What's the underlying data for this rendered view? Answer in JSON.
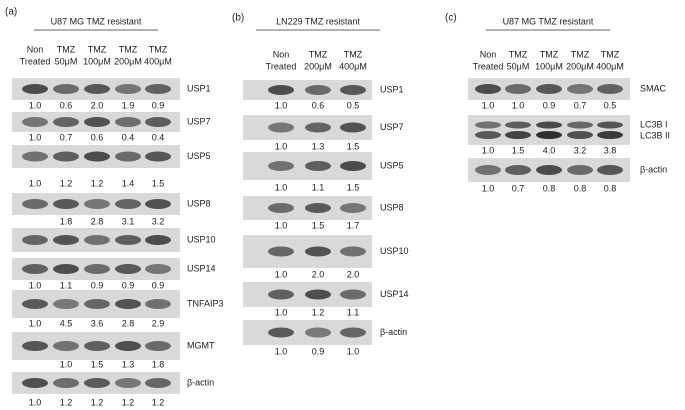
{
  "panels": [
    {
      "label": "(a)",
      "title": "U87 MG TMZ resistant",
      "lanes": [
        [
          "Non",
          "Treated"
        ],
        [
          "TMZ",
          "50μM"
        ],
        [
          "TMZ",
          "100μM"
        ],
        [
          "TMZ",
          "200μM"
        ],
        [
          "TMZ",
          "400μM"
        ]
      ],
      "blots": [
        {
          "labels": [
            "USP1"
          ],
          "values": [
            "1.0",
            "0.6",
            "2.0",
            "1.9",
            "0.9"
          ]
        },
        {
          "labels": [
            "USP7"
          ],
          "values": [
            "1.0",
            "0.7",
            "0.6",
            "0.4",
            "0.4"
          ]
        },
        {
          "labels": [
            "USP5"
          ],
          "values": [
            "1.0",
            "1.2",
            "1.2",
            "1.4",
            "1.5"
          ]
        },
        {
          "labels": [
            "USP8"
          ],
          "values": [
            null,
            "1.8",
            "2.8",
            "3.1",
            "3.2"
          ]
        },
        {
          "labels": [
            "USP10"
          ],
          "values": [
            "1.0",
            "1.4",
            "1.7",
            "2.1",
            "1.9"
          ]
        },
        {
          "labels": [
            "USP14"
          ],
          "values": [
            "1.0",
            "1.1",
            "0.9",
            "0.9",
            "0.9"
          ]
        },
        {
          "labels": [
            "TNFAIP3"
          ],
          "values": [
            "1.0",
            "4.5",
            "3.6",
            "2.8",
            "2.9"
          ]
        },
        {
          "labels": [
            "MGMT"
          ],
          "values": [
            null,
            "1.0",
            "1.5",
            "1.3",
            "1.8"
          ]
        },
        {
          "labels": [
            "β-actin"
          ],
          "values": [
            "1.0",
            "1.2",
            "1.2",
            "1.2",
            "1.2"
          ]
        }
      ]
    },
    {
      "label": "(b)",
      "title": "LN229 TMZ resistant",
      "lanes": [
        [
          "Non",
          "Treated"
        ],
        [
          "TMZ",
          "200μM"
        ],
        [
          "TMZ",
          "400μM"
        ]
      ],
      "blots": [
        {
          "labels": [
            "USP1"
          ],
          "values": [
            "1.0",
            "0.6",
            "0.5"
          ]
        },
        {
          "labels": [
            "USP7"
          ],
          "values": [
            "1.0",
            "1.3",
            "1.5"
          ]
        },
        {
          "labels": [
            "USP5"
          ],
          "values": [
            "1.0",
            "1.1",
            "1.5"
          ]
        },
        {
          "labels": [
            "USP8"
          ],
          "values": [
            "1.0",
            "1.5",
            "1.7"
          ]
        },
        {
          "labels": [
            "USP10"
          ],
          "values": [
            "1.0",
            "2.0",
            "2.0"
          ]
        },
        {
          "labels": [
            "USP14"
          ],
          "values": [
            "1.0",
            "1.2",
            "1.1"
          ]
        },
        {
          "labels": [
            "β-actin"
          ],
          "values": [
            "1.0",
            "0.9",
            "1.0"
          ]
        }
      ]
    },
    {
      "label": "(c)",
      "title": "U87 MG TMZ resistant",
      "lanes": [
        [
          "Non",
          "Treated"
        ],
        [
          "TMZ",
          "50μM"
        ],
        [
          "TMZ",
          "100μM"
        ],
        [
          "TMZ",
          "200μM"
        ],
        [
          "TMZ",
          "400μM"
        ]
      ],
      "blots": [
        {
          "labels": [
            "SMAC"
          ],
          "values": [
            "1.0",
            "1.0",
            "0.9",
            "0.7",
            "0.5"
          ]
        },
        {
          "labels": [
            "LC3B I",
            "LC3B II"
          ],
          "values": [
            "1.0",
            "1.5",
            "4.0",
            "3.2",
            "3.8"
          ]
        },
        {
          "labels": [
            "β-actin"
          ],
          "values": [
            "1.0",
            "0.7",
            "0.8",
            "0.8",
            "0.8"
          ]
        }
      ]
    }
  ]
}
